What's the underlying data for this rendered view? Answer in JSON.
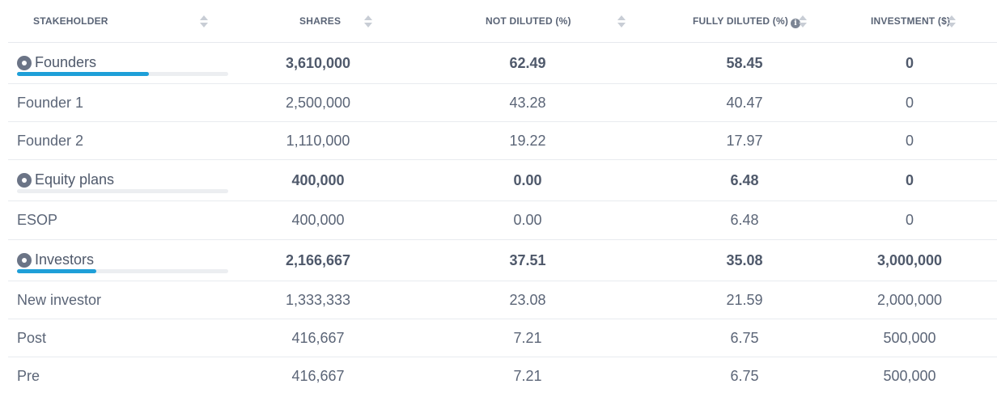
{
  "headers": {
    "stakeholder": "STAKEHOLDER",
    "shares": "SHARES",
    "not_diluted": "NOT DILUTED (%)",
    "fully_diluted": "FULLY DILUTED (%)",
    "investment": "INVESTMENT ($)"
  },
  "colors": {
    "bar_fill": "#1e9fd8",
    "bar_track": "#eceef1"
  },
  "rows": [
    {
      "type": "group",
      "name": "Founders",
      "shares": "3,610,000",
      "not_diluted": "62.49",
      "fully_diluted": "58.45",
      "investment": "0",
      "bar_fraction": 0.625
    },
    {
      "type": "item",
      "name": "Founder 1",
      "shares": "2,500,000",
      "not_diluted": "43.28",
      "fully_diluted": "40.47",
      "investment": "0"
    },
    {
      "type": "item",
      "name": "Founder 2",
      "shares": "1,110,000",
      "not_diluted": "19.22",
      "fully_diluted": "17.97",
      "investment": "0"
    },
    {
      "type": "group",
      "name": "Equity plans",
      "shares": "400,000",
      "not_diluted": "0.00",
      "fully_diluted": "6.48",
      "investment": "0",
      "bar_fraction": 0.0
    },
    {
      "type": "item",
      "name": "ESOP",
      "shares": "400,000",
      "not_diluted": "0.00",
      "fully_diluted": "6.48",
      "investment": "0"
    },
    {
      "type": "group",
      "name": "Investors",
      "shares": "2,166,667",
      "not_diluted": "37.51",
      "fully_diluted": "35.08",
      "investment": "3,000,000",
      "bar_fraction": 0.375
    },
    {
      "type": "item",
      "name": "New investor",
      "shares": "1,333,333",
      "not_diluted": "23.08",
      "fully_diluted": "21.59",
      "investment": "2,000,000"
    },
    {
      "type": "item",
      "name": "Post",
      "shares": "416,667",
      "not_diluted": "7.21",
      "fully_diluted": "6.75",
      "investment": "500,000"
    },
    {
      "type": "item",
      "name": "Pre",
      "shares": "416,667",
      "not_diluted": "7.21",
      "fully_diluted": "6.75",
      "investment": "500,000"
    }
  ]
}
